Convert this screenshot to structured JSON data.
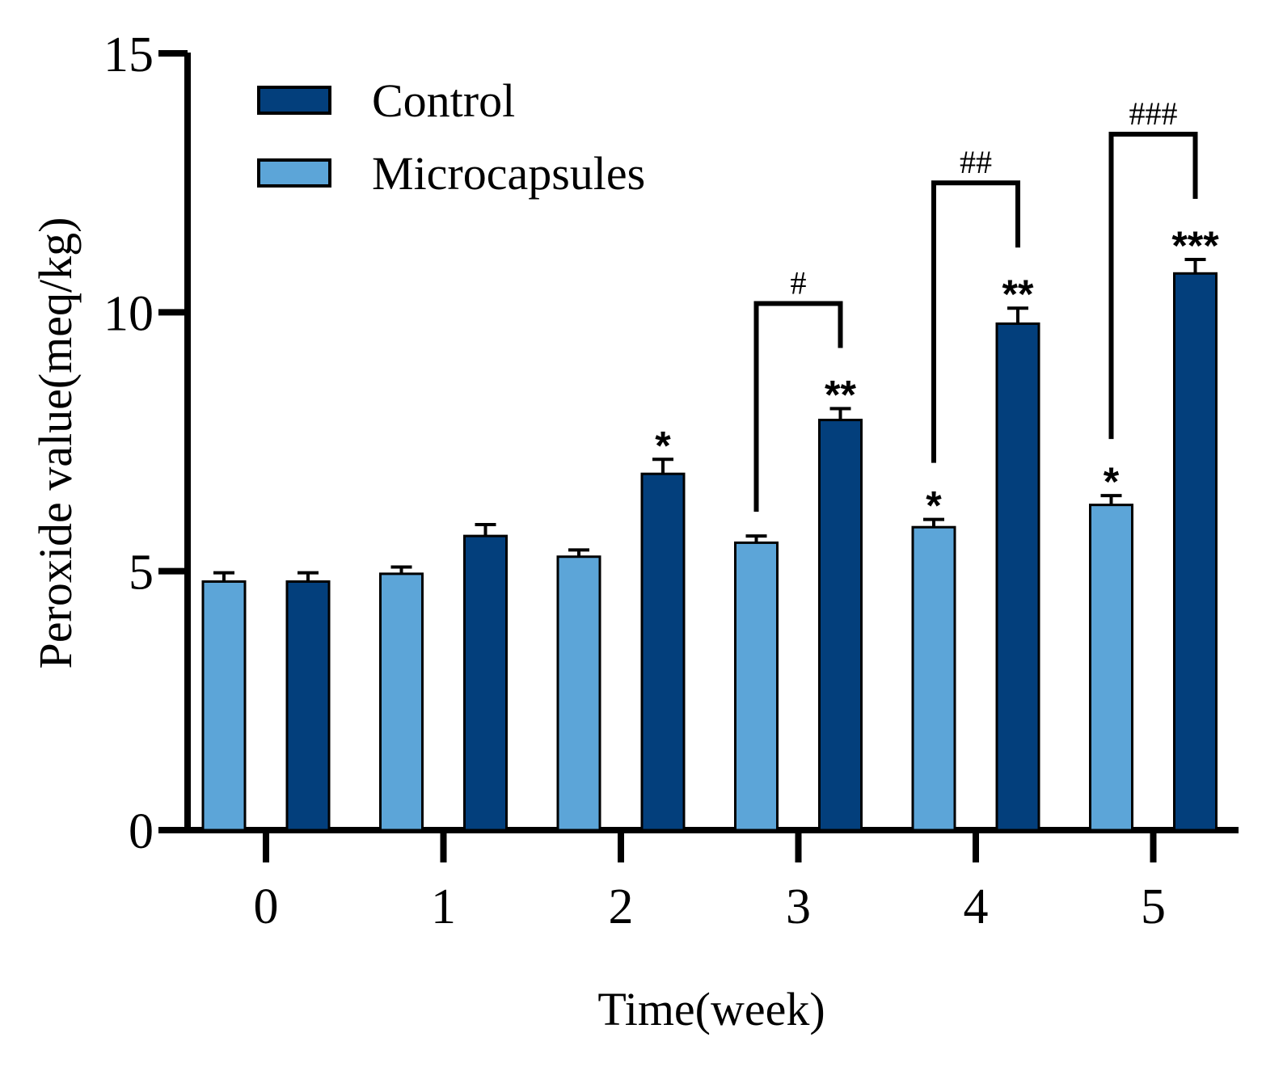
{
  "chart_data": {
    "type": "bar",
    "title": "",
    "xlabel": "Time(week)",
    "ylabel": "Peroxide value(meq/kg)",
    "ylim": [
      0,
      15
    ],
    "yticks": [
      "0",
      "5",
      "10",
      "15"
    ],
    "categories": [
      "0",
      "1",
      "2",
      "3",
      "4",
      "5"
    ],
    "legend_position": "top-left",
    "series": [
      {
        "name": "Microcapsules",
        "color": "#5ca5d8",
        "values": [
          4.8,
          4.95,
          5.28,
          5.55,
          5.85,
          6.28
        ],
        "errors": [
          0.17,
          0.13,
          0.13,
          0.13,
          0.15,
          0.18
        ],
        "annotations": [
          "",
          "",
          "",
          "",
          "*",
          "*"
        ]
      },
      {
        "name": "Control",
        "color": "#033f7c",
        "values": [
          4.8,
          5.68,
          6.88,
          7.92,
          9.78,
          10.75
        ],
        "errors": [
          0.17,
          0.22,
          0.28,
          0.22,
          0.3,
          0.27
        ],
        "annotations": [
          "",
          "",
          "*",
          "**",
          "**",
          "***"
        ]
      }
    ],
    "comparisons": [
      {
        "category": "3",
        "label": "#"
      },
      {
        "category": "4",
        "label": "##"
      },
      {
        "category": "5",
        "label": "###"
      }
    ]
  }
}
